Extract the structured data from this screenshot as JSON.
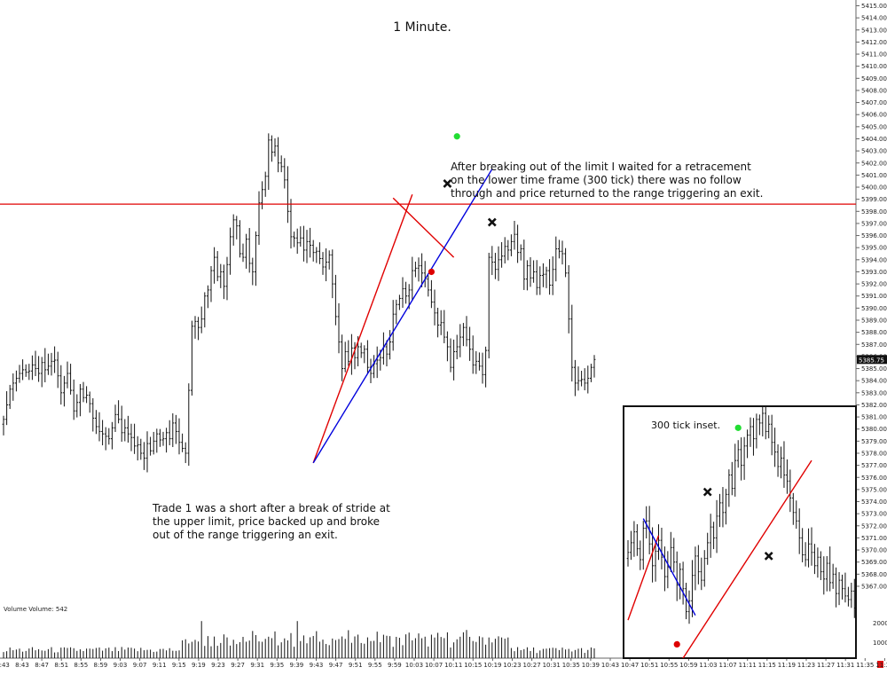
{
  "chart_data": {
    "type": "ohlc",
    "title": "1 Minute.",
    "price_axis": {
      "min": 5366,
      "max": 5415,
      "ticks": [
        5415,
        5414,
        5413,
        5412,
        5411,
        5410,
        5409,
        5408,
        5407,
        5406,
        5405,
        5404,
        5403,
        5402,
        5401,
        5400,
        5399,
        5398,
        5397,
        5396,
        5395,
        5394,
        5393,
        5392,
        5391,
        5390,
        5389,
        5388,
        5387,
        5386,
        5385,
        5384,
        5383,
        5382,
        5381,
        5380,
        5379,
        5378,
        5377,
        5376,
        5375,
        5374,
        5373,
        5372,
        5371,
        5370,
        5369,
        5368,
        5367
      ],
      "tick_suffix": ".00",
      "current_price": "5385.75"
    },
    "volume_axis": {
      "ticks": [
        "2000",
        "1000"
      ],
      "label": "Volume  Volume: 542"
    },
    "time_labels": [
      "8:43",
      "8:47",
      "8:51",
      "8:55",
      "8:59",
      "9:03",
      "9:07",
      "9:11",
      "9:15",
      "9:19",
      "9:23",
      "9:27",
      "9:31",
      "9:35",
      "9:39",
      "9:43",
      "9:47",
      "9:51",
      "9:55",
      "9:59",
      "10:03",
      "10:07",
      "10:11",
      "10:15",
      "10:19",
      "10:23",
      "10:27",
      "10:31",
      "10:35",
      "10:39",
      "10:43",
      "10:47",
      "10:51",
      "10:55",
      "10:59",
      "11:03",
      "11:07",
      "11:11",
      "11:15",
      "11:19",
      "11:23",
      "11:27",
      "11:31",
      "11:35",
      "11:39"
    ],
    "time_label_first_partial": "3:43",
    "bar_closes": [
      5380.8,
      5382.0,
      5383.3,
      5383.8,
      5384.2,
      5384.6,
      5384.9,
      5384.7,
      5384.8,
      5385.3,
      5385.0,
      5384.6,
      5385.5,
      5384.9,
      5385.2,
      5385.6,
      5385.7,
      5384.4,
      5383.0,
      5383.8,
      5384.6,
      5383.2,
      5381.5,
      5382.2,
      5383.3,
      5382.6,
      5382.8,
      5382.1,
      5380.9,
      5380.2,
      5379.8,
      5379.6,
      5379.4,
      5379.2,
      5380.1,
      5381.2,
      5380.8,
      5379.7,
      5380.1,
      5379.6,
      5379.3,
      5378.6,
      5378.7,
      5378.0,
      5377.6,
      5378.8,
      5378.2,
      5379.0,
      5379.6,
      5379.1,
      5379.2,
      5379.7,
      5379.2,
      5380.5,
      5379.8,
      5378.9,
      5378.4,
      5378.0,
      5383.2,
      5388.5,
      5388.9,
      5388.4,
      5389.1,
      5391.0,
      5391.5,
      5393.1,
      5394.2,
      5392.6,
      5393.0,
      5391.8,
      5393.6,
      5395.9,
      5397.3,
      5396.8,
      5394.5,
      5394.2,
      5395.7,
      5393.7,
      5393.0,
      5396.0,
      5398.7,
      5399.8,
      5400.9,
      5403.9,
      5402.9,
      5403.4,
      5402.0,
      5401.7,
      5400.6,
      5398.0,
      5395.9,
      5395.8,
      5395.4,
      5395.8,
      5394.8,
      5395.5,
      5395.2,
      5394.6,
      5394.7,
      5394.1,
      5393.4,
      5393.8,
      5394.4,
      5392.0,
      5389.3,
      5387.2,
      5385.0,
      5386.4,
      5385.6,
      5386.7,
      5385.9,
      5386.8,
      5386.3,
      5386.6,
      5385.1,
      5384.6,
      5385.4,
      5385.7,
      5385.9,
      5386.8,
      5386.2,
      5387.2,
      5389.5,
      5390.3,
      5390.8,
      5391.6,
      5391.0,
      5391.5,
      5393.1,
      5393.3,
      5393.5,
      5392.9,
      5392.4,
      5391.5,
      5390.5,
      5389.6,
      5388.6,
      5388.8,
      5387.6,
      5386.8,
      5385.1,
      5386.4,
      5386.8,
      5387.6,
      5388.4,
      5387.4,
      5386.6,
      5385.3,
      5385.6,
      5385.2,
      5384.5,
      5386.5,
      5394.2,
      5393.8,
      5393.2,
      5394.0,
      5394.3,
      5395.1,
      5394.8,
      5395.5,
      5396.1,
      5394.6,
      5394.9,
      5392.4,
      5393.5,
      5392.5,
      5393.0,
      5391.7,
      5392.7,
      5392.8,
      5393.1,
      5391.9,
      5393.2,
      5394.9,
      5394.7,
      5394.5,
      5392.9,
      5389.1,
      5385.1,
      5383.8,
      5384.0,
      5384.1,
      5383.8,
      5384.2,
      5385.1,
      5385.75
    ],
    "current_bar_count": 192,
    "horizontal_lines": [
      {
        "price": 5398.6,
        "color": "#e00000"
      }
    ],
    "trendlines": [
      {
        "color": "#e00000",
        "from": [
          97,
          5377.2
        ],
        "to": [
          128,
          5399.4
        ]
      },
      {
        "color": "#e00000",
        "from": [
          122,
          5399.1
        ],
        "to": [
          141,
          5394.2
        ]
      },
      {
        "color": "#0000dd",
        "from": [
          97,
          5377.2
        ],
        "to": [
          153,
          5401.5
        ]
      }
    ],
    "markers": [
      {
        "kind": "dot",
        "color": "#22dd33",
        "bar": 142,
        "price": 5404.2
      },
      {
        "kind": "cross",
        "color": "#111111",
        "bar": 139,
        "price": 5400.3
      },
      {
        "kind": "dot",
        "color": "#dd0000",
        "bar": 134,
        "price": 5393.0
      },
      {
        "kind": "cross",
        "color": "#111111",
        "bar": 153,
        "price": 5397.1
      }
    ],
    "annotations": [
      "After breaking out of the limit I waited for a retracement",
      "on the lower time frame (300 tick) there was no follow",
      "through and price returned to the range triggering an exit."
    ],
    "trade_note": [
      "Trade 1 was a short after a break of stride at",
      "the upper limit, price backed up and broke",
      "out of the range triggering an exit."
    ],
    "inset": {
      "title": "300 tick inset.",
      "closes": [
        5369.8,
        5370.6,
        5371.5,
        5370.1,
        5369.2,
        5371.8,
        5372.4,
        5370.5,
        5368.7,
        5369.9,
        5370.8,
        5369.4,
        5367.8,
        5368.6,
        5370.2,
        5369.0,
        5367.1,
        5368.4,
        5366.8,
        5364.9,
        5365.8,
        5367.9,
        5369.5,
        5368.2,
        5367.5,
        5369.3,
        5370.6,
        5371.9,
        5371.0,
        5372.8,
        5373.9,
        5373.1,
        5374.6,
        5376.2,
        5375.1,
        5377.4,
        5378.3,
        5377.0,
        5378.6,
        5379.5,
        5380.2,
        5379.2,
        5380.8,
        5380.5,
        5381.3,
        5379.8,
        5380.4,
        5378.9,
        5378.1,
        5376.9,
        5377.6,
        5376.2,
        5375.7,
        5374.3,
        5373.1,
        5372.4,
        5371.0,
        5369.6,
        5369.2,
        5370.5,
        5369.8,
        5368.7,
        5369.4,
        5368.2,
        5367.6,
        5368.9,
        5367.3,
        5368.0,
        5366.4,
        5367.5,
        5366.8,
        5366.2,
        5365.9,
        5366.6,
        5365.2
      ],
      "trendlines": [
        {
          "color": "#e00000",
          "from": [
            0,
            5364.2
          ],
          "to": [
            10,
            5371.2
          ]
        },
        {
          "color": "#0000dd",
          "from": [
            5,
            5372.6
          ],
          "to": [
            22,
            5364.6
          ]
        },
        {
          "color": "#e00000",
          "from": [
            14,
            5359.5
          ],
          "to": [
            60,
            5377.4
          ]
        }
      ],
      "markers": [
        {
          "kind": "dot",
          "color": "#dd0000",
          "bar": 16,
          "price": 5362.2
        },
        {
          "kind": "cross",
          "color": "#111111",
          "bar": 26,
          "price": 5374.8
        },
        {
          "kind": "dot",
          "color": "#22dd33",
          "bar": 36,
          "price": 5380.1
        },
        {
          "kind": "cross",
          "color": "#111111",
          "bar": 46,
          "price": 5369.5
        }
      ]
    }
  }
}
